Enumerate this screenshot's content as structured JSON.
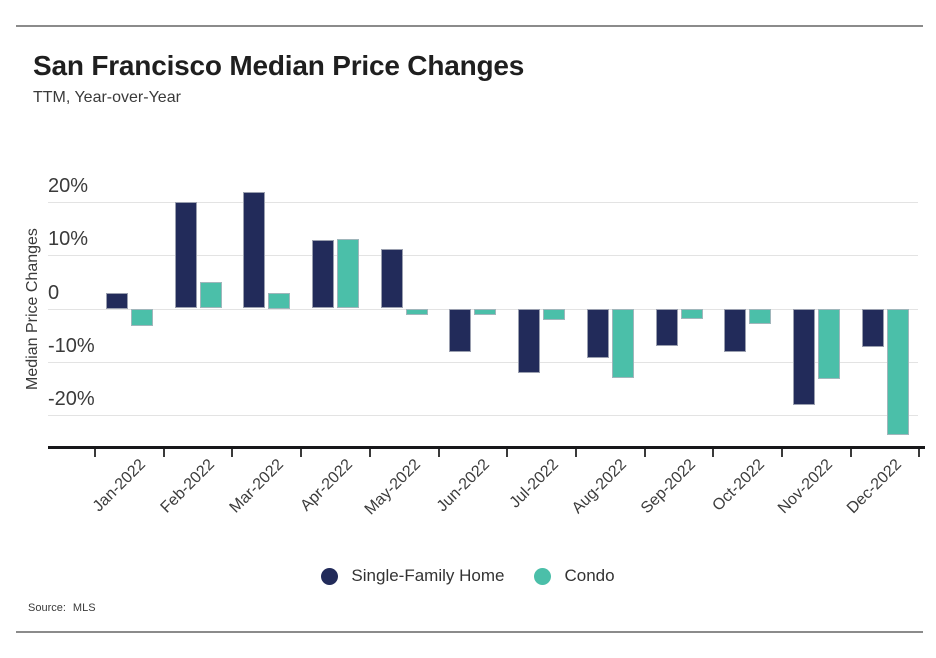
{
  "header": {
    "title": "San Francisco Median Price Changes",
    "subtitle": "TTM, Year-over-Year"
  },
  "chart_data": {
    "type": "bar",
    "title": "San Francisco Median Price Changes",
    "subtitle": "TTM, Year-over-Year",
    "ylabel": "Median Price Changes",
    "xlabel": "",
    "unit": "%",
    "grid": true,
    "legend_position": "bottom",
    "ylim": [
      -26,
      23
    ],
    "categories": [
      "Jan-2022",
      "Feb-2022",
      "Mar-2022",
      "Apr-2022",
      "May-2022",
      "Jun-2022",
      "Jul-2022",
      "Aug-2022",
      "Sep-2022",
      "Oct-2022",
      "Nov-2022",
      "Dec-2022"
    ],
    "series": [
      {
        "name": "Single-Family Home",
        "color": "#222b5a",
        "values": [
          2.9,
          20.0,
          21.9,
          12.9,
          11.1,
          -8.1,
          -12.0,
          -9.3,
          -7.1,
          -8.1,
          -18.1,
          -7.3
        ]
      },
      {
        "name": "Condo",
        "color": "#4bbfa9",
        "values": [
          -3.2,
          5.0,
          2.9,
          13.0,
          -1.2,
          -1.2,
          -2.1,
          -13.1,
          -2.0,
          -2.9,
          -13.3,
          -23.8
        ]
      }
    ],
    "y_ticks": [
      {
        "value": 20,
        "label": "20%"
      },
      {
        "value": 10,
        "label": "10%"
      },
      {
        "value": 0,
        "label": "0"
      },
      {
        "value": -10,
        "label": "-10%"
      },
      {
        "value": -20,
        "label": "-20%"
      }
    ]
  },
  "legend": {
    "items": [
      {
        "label": "Single-Family Home"
      },
      {
        "label": "Condo"
      }
    ]
  },
  "source": {
    "prefix": "Source:",
    "value": "MLS"
  },
  "colors": {
    "single_family": "#222b5a",
    "condo": "#4bbfa9",
    "gridline": "#e3e3e3",
    "axis": "#17171a",
    "divider": "#8b8b8b"
  }
}
